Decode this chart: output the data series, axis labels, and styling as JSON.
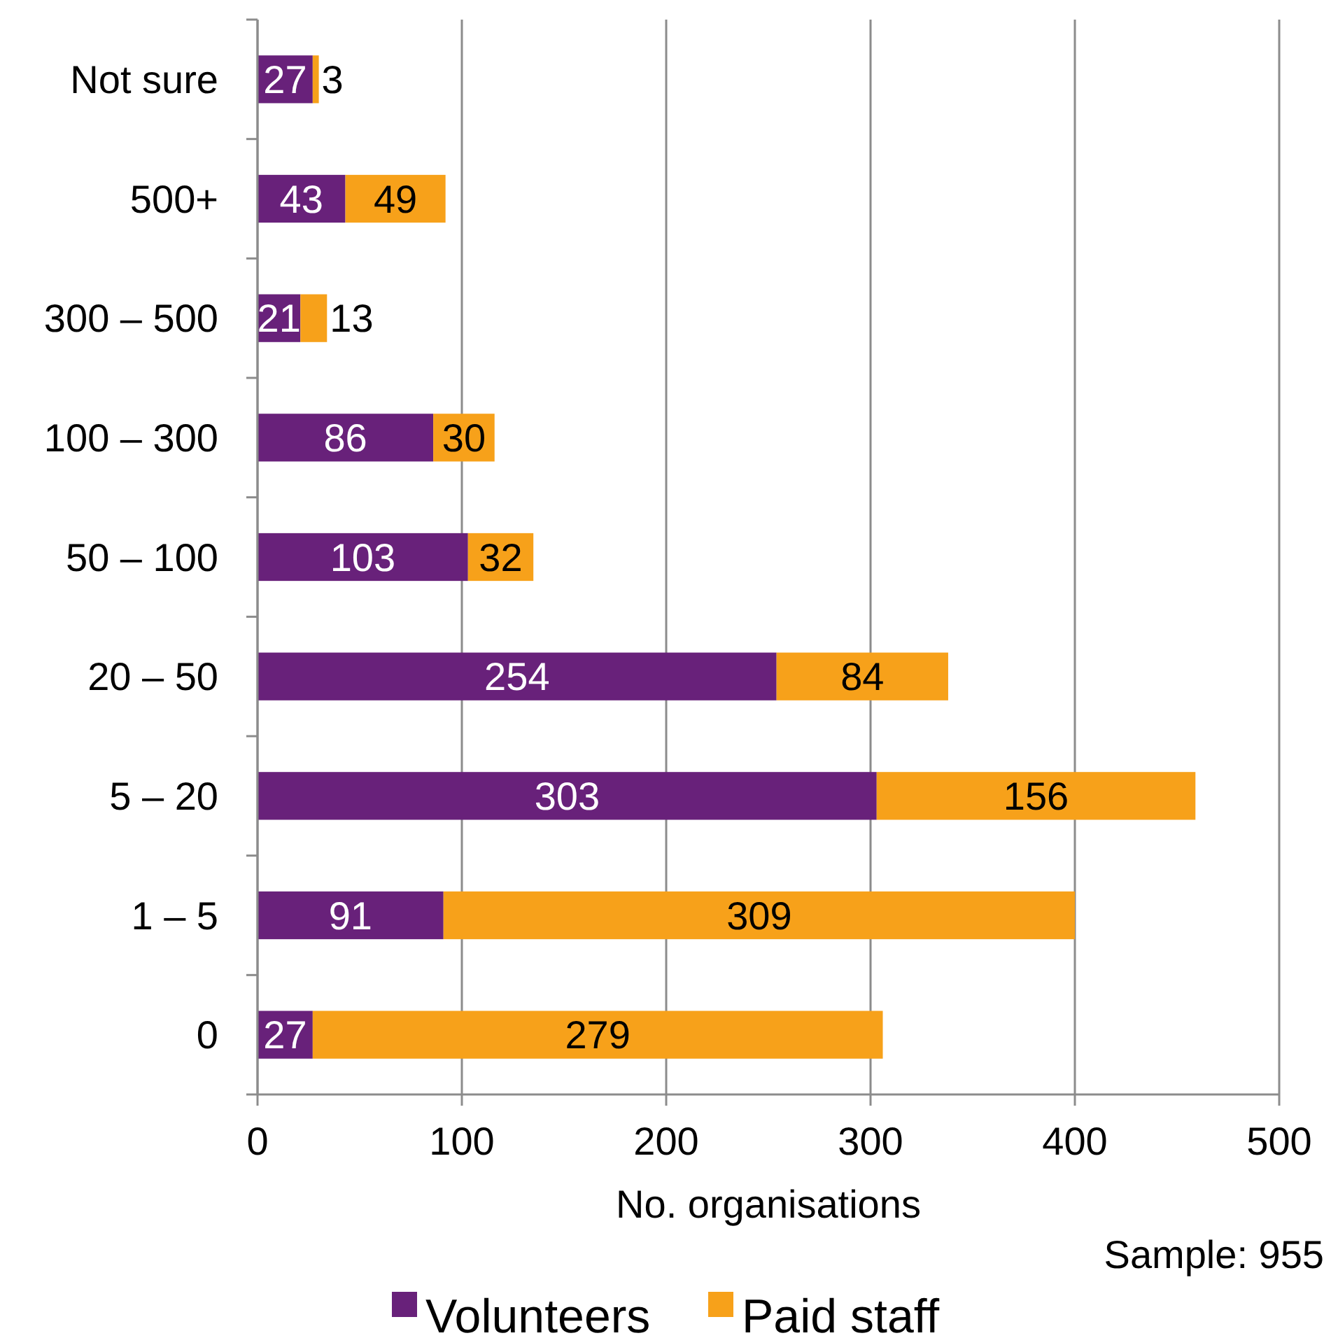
{
  "chart_data": {
    "type": "bar",
    "orientation": "horizontal",
    "stacked": true,
    "xlabel": "No. organisations",
    "categories": [
      "Not sure",
      "500+",
      "300 – 500",
      "100 – 300",
      "50 – 100",
      "20 – 50",
      "5 – 20",
      "1 – 5",
      "0"
    ],
    "series": [
      {
        "name": "Volunteers",
        "color": "#68217a",
        "values": [
          27,
          43,
          21,
          86,
          103,
          254,
          303,
          91,
          27
        ]
      },
      {
        "name": "Paid staff",
        "color": "#f7a11a",
        "values": [
          3,
          49,
          13,
          30,
          32,
          84,
          156,
          309,
          279
        ]
      }
    ],
    "xlim": [
      0,
      500
    ],
    "xticks": [
      0,
      100,
      200,
      300,
      400,
      500
    ],
    "grid": "x",
    "data_labels": true,
    "legend": "bottom",
    "annotations": [
      "Sample: 955"
    ]
  }
}
